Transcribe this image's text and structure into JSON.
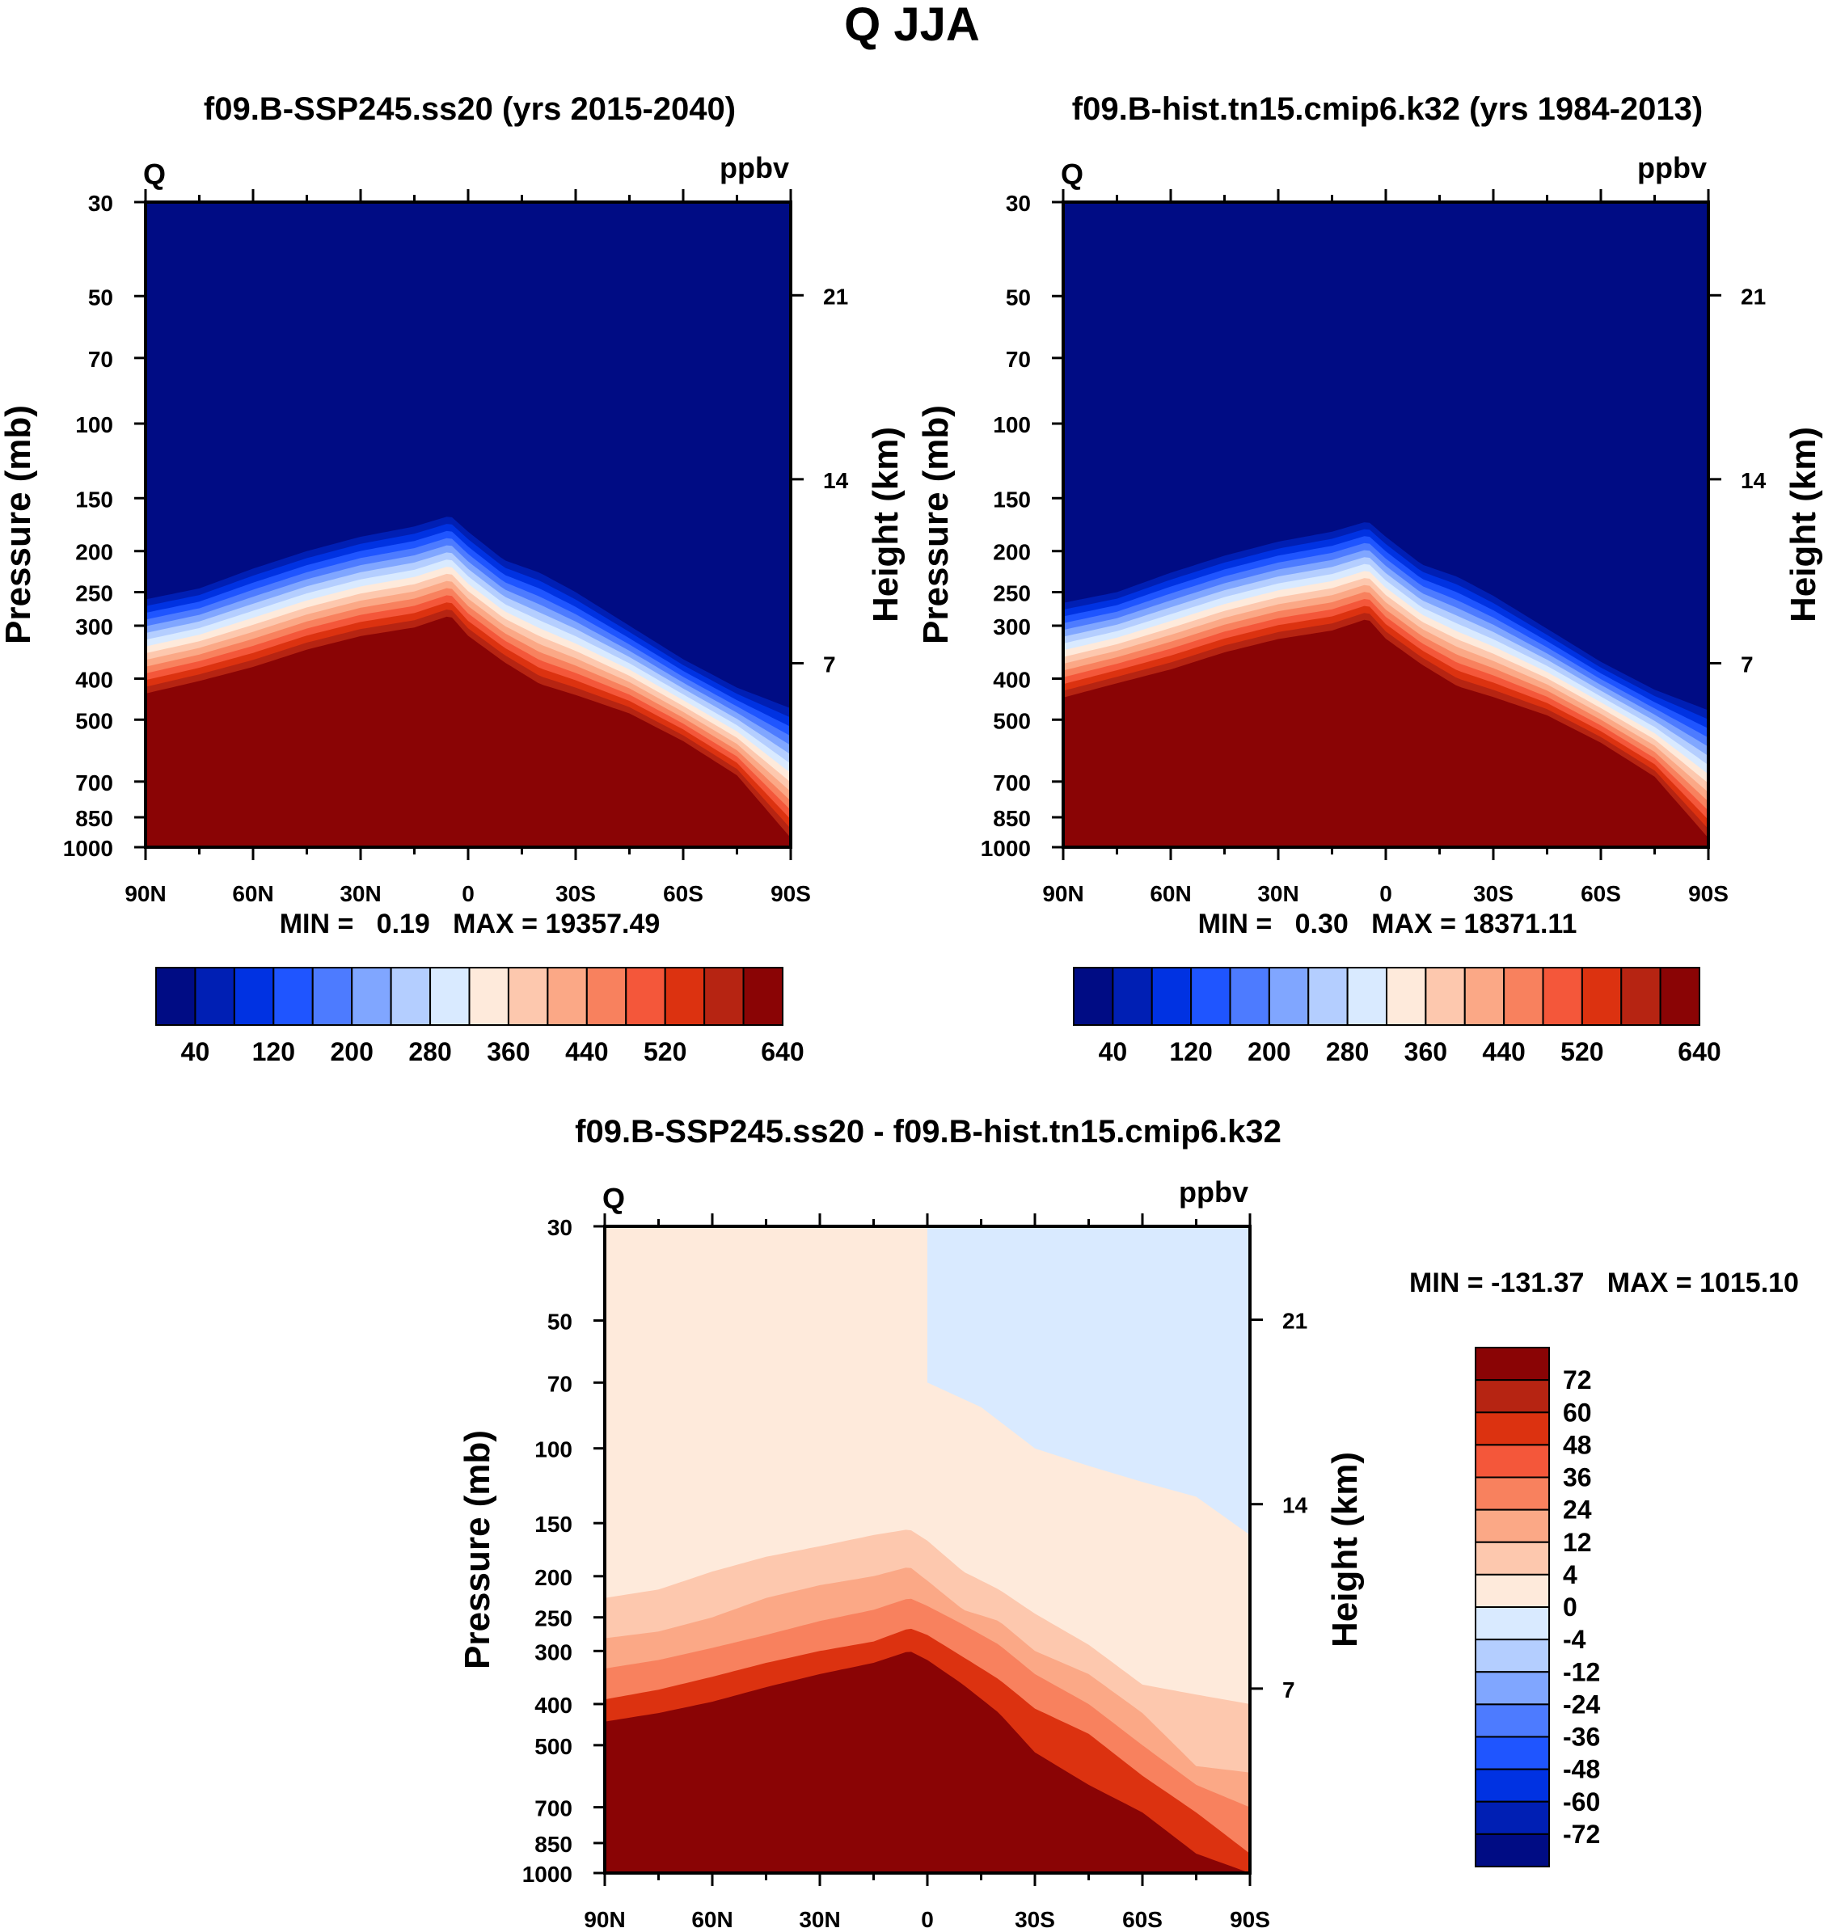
{
  "title": "Q JJA",
  "variable": "Q",
  "units": "ppbv",
  "y_label_left": "Pressure (mb)",
  "y_label_right": "Height (km)",
  "pressure_ticks": [
    "30",
    "50",
    "70",
    "100",
    "150",
    "200",
    "250",
    "300",
    "400",
    "500",
    "700",
    "850",
    "1000"
  ],
  "pressure_values": [
    30,
    50,
    70,
    100,
    150,
    200,
    250,
    300,
    400,
    500,
    700,
    850,
    1000
  ],
  "height_ticks": [
    "21",
    "14",
    "7"
  ],
  "height_km": [
    21,
    14,
    7
  ],
  "lat_ticks": [
    "90N",
    "60N",
    "30N",
    "0",
    "30S",
    "60S",
    "90S"
  ],
  "lat_values": [
    90,
    60,
    30,
    0,
    -30,
    -60,
    -90
  ],
  "panels": [
    {
      "id": "ssp245",
      "title": "f09.B-SSP245.ss20 (yrs 2015-2040)",
      "stats": "MIN =   0.19   MAX = 19357.49",
      "min": 0.19,
      "max": 19357.49
    },
    {
      "id": "hist",
      "title": "f09.B-hist.tn15.cmip6.k32 (yrs 1984-2013)",
      "stats": "MIN =   0.30   MAX = 18371.11",
      "min": 0.3,
      "max": 18371.11
    },
    {
      "id": "diff",
      "title": "f09.B-SSP245.ss20 - f09.B-hist.tn15.cmip6.k32",
      "stats": "MIN = -131.37   MAX = 1015.10",
      "min": -131.37,
      "max": 1015.1
    }
  ],
  "colorbar_abs": {
    "levels": [
      0,
      40,
      80,
      120,
      160,
      200,
      240,
      280,
      320,
      360,
      400,
      440,
      480,
      520,
      560,
      600,
      640
    ],
    "labels": [
      "40",
      "120",
      "200",
      "280",
      "360",
      "440",
      "520",
      "640"
    ],
    "colors": [
      "#000c84",
      "#001fb4",
      "#0032e2",
      "#1f55ff",
      "#4d7bff",
      "#80a6ff",
      "#b4ceff",
      "#d9eaff",
      "#feeadb",
      "#fdc8ae",
      "#fba886",
      "#f8815e",
      "#f4573a",
      "#dc3210",
      "#b62412",
      "#8a0405"
    ]
  },
  "colorbar_diff": {
    "levels": [
      -72,
      -60,
      -48,
      -36,
      -24,
      -12,
      -4,
      0,
      4,
      12,
      24,
      36,
      48,
      60,
      72
    ],
    "labels": [
      "72",
      "60",
      "48",
      "36",
      "24",
      "12",
      "4",
      "0",
      "-4",
      "-12",
      "-24",
      "-36",
      "-48",
      "-60",
      "-72"
    ],
    "colors": [
      "#8a0405",
      "#b62412",
      "#dc3210",
      "#f4573a",
      "#f8815e",
      "#fba886",
      "#fdc8ae",
      "#feeadb",
      "#d9eaff",
      "#b4ceff",
      "#80a6ff",
      "#4d7bff",
      "#1f55ff",
      "#0032e2",
      "#001fb4",
      "#000c84"
    ]
  },
  "chart_data": [
    {
      "type": "heatmap",
      "title": "f09.B-SSP245.ss20 (yrs 2015-2040)",
      "xlabel": "Latitude",
      "ylabel": "Pressure (mb)",
      "x": [
        90,
        75,
        60,
        45,
        30,
        15,
        5,
        0,
        -10,
        -20,
        -30,
        -45,
        -60,
        -75,
        -90
      ],
      "xlim": [
        90,
        -90
      ],
      "ylim": [
        1000,
        30
      ],
      "tropopause_mb": [
        260,
        245,
        220,
        200,
        185,
        175,
        165,
        180,
        210,
        225,
        250,
        300,
        360,
        420,
        470
      ],
      "moist_top_mb": [
        450,
        420,
        390,
        355,
        330,
        315,
        295,
        330,
        380,
        430,
        455,
        500,
        580,
        700,
        1000
      ]
    },
    {
      "type": "heatmap",
      "title": "f09.B-hist.tn15.cmip6.k32 (yrs 1984-2013)",
      "xlabel": "Latitude",
      "ylabel": "Pressure (mb)",
      "x": [
        90,
        75,
        60,
        45,
        30,
        15,
        5,
        0,
        -10,
        -20,
        -30,
        -45,
        -60,
        -75,
        -90
      ],
      "xlim": [
        90,
        -90
      ],
      "ylim": [
        1000,
        30
      ],
      "tropopause_mb": [
        265,
        250,
        225,
        205,
        190,
        180,
        170,
        185,
        215,
        230,
        255,
        305,
        365,
        425,
        475
      ],
      "moist_top_mb": [
        460,
        425,
        395,
        360,
        335,
        320,
        300,
        335,
        385,
        435,
        460,
        505,
        585,
        705,
        1000
      ]
    },
    {
      "type": "heatmap",
      "title": "f09.B-SSP245.ss20 - f09.B-hist.tn15.cmip6.k32",
      "xlabel": "Latitude",
      "ylabel": "Pressure (mb)",
      "x": [
        90,
        75,
        60,
        45,
        30,
        15,
        5,
        0,
        -10,
        -20,
        -30,
        -45,
        -60,
        -75,
        -90
      ],
      "xlim": [
        90,
        -90
      ],
      "ylim": [
        1000,
        30
      ],
      "contours_mb": {
        "0": [
          30,
          30,
          30,
          30,
          30,
          30,
          30,
          30,
          70,
          80,
          100,
          110,
          120,
          130,
          160
        ],
        "4": [
          225,
          215,
          195,
          180,
          170,
          160,
          155,
          165,
          195,
          215,
          245,
          290,
          360,
          380,
          400
        ],
        "12": [
          280,
          270,
          250,
          225,
          210,
          200,
          190,
          205,
          240,
          255,
          300,
          340,
          420,
          560,
          580
        ],
        "24": [
          330,
          315,
          295,
          275,
          255,
          240,
          225,
          235,
          260,
          290,
          340,
          400,
          500,
          620,
          700
        ],
        "48": [
          390,
          370,
          345,
          320,
          300,
          285,
          265,
          275,
          310,
          350,
          410,
          470,
          590,
          720,
          900
        ],
        "72": [
          440,
          420,
          395,
          365,
          340,
          320,
          300,
          315,
          360,
          420,
          520,
          620,
          720,
          900,
          1000
        ]
      },
      "neg_region": {
        "lat_from": 0,
        "lat_to": -90,
        "p_from": 30,
        "p_bottom_mb": [
          70,
          80,
          100,
          110,
          120,
          130,
          160
        ]
      }
    }
  ]
}
